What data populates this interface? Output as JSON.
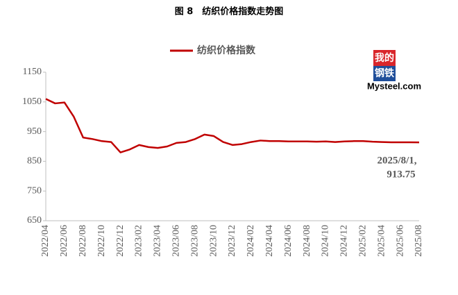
{
  "chart_data": {
    "type": "line",
    "title": "图 8　纺织价格指数走势图",
    "categories": [
      "2022/04",
      null,
      "2022/06",
      null,
      "2022/08",
      null,
      "2022/10",
      null,
      "2022/12",
      null,
      "2023/02",
      null,
      "2023/04",
      null,
      "2023/06",
      null,
      "2023/08",
      null,
      "2023/10",
      null,
      "2023/12",
      null,
      "2024/02",
      null,
      "2024/04",
      null,
      "2024/06",
      null,
      "2024/08",
      null,
      "2024/10",
      null,
      "2024/12",
      null,
      "2025/02",
      null,
      "2025/04",
      null,
      "2025/06",
      null,
      "2025/08"
    ],
    "series": [
      {
        "name": "纺织价格指数",
        "color": "#c00000",
        "values": [
          1060,
          1045,
          1048,
          1000,
          930,
          925,
          918,
          915,
          880,
          890,
          905,
          898,
          895,
          900,
          912,
          915,
          925,
          940,
          935,
          915,
          905,
          908,
          915,
          920,
          918,
          918,
          917,
          917,
          917,
          916,
          917,
          915,
          917,
          918,
          918,
          916,
          915,
          914,
          914,
          914,
          913.75
        ]
      }
    ],
    "ylim": [
      650,
      1150
    ],
    "yticks": [
      650,
      750,
      850,
      950,
      1050,
      1150
    ],
    "grid": false,
    "legend": "top",
    "annotation": [
      "2025/8/1,",
      "913.75"
    ],
    "logo": {
      "top": "我的",
      "bottom": "钢铁",
      "site": "Mysteel.com"
    }
  }
}
